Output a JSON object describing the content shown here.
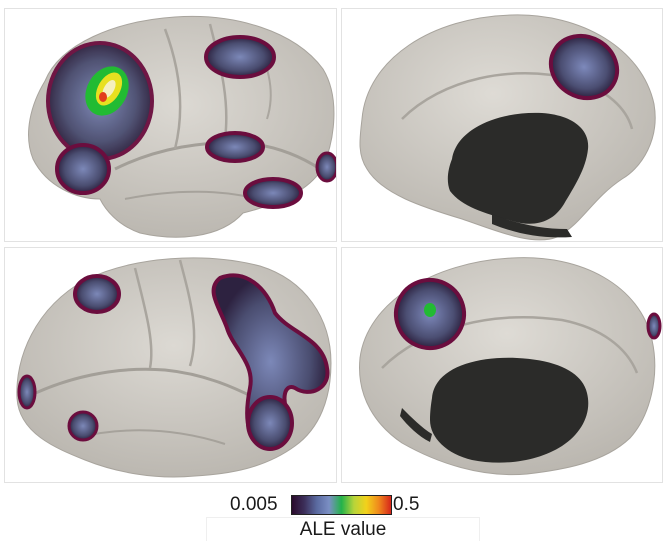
{
  "figure": {
    "views": [
      {
        "name": "left-lateral-view"
      },
      {
        "name": "left-medial-view"
      },
      {
        "name": "right-lateral-view"
      },
      {
        "name": "right-medial-view"
      }
    ],
    "colors": {
      "cortex": "#cfcbc5",
      "medial_wall": "#2b2b29",
      "cluster_edge": "#6b0d3e",
      "cluster_fill": "#4b4e72",
      "peak_green": "#22bb33",
      "peak_yellow": "#e8e020",
      "peak_red": "#e23d1c"
    },
    "colorbar": {
      "min_label": "0.005",
      "max_label": "0.5",
      "title": "ALE value",
      "colormap": [
        "#2a0a2c",
        "#3c2f5a",
        "#5a6aa0",
        "#7b8fc4",
        "#23b24a",
        "#b7d43a",
        "#f2d21b",
        "#f08a1c",
        "#d6261b"
      ]
    }
  }
}
